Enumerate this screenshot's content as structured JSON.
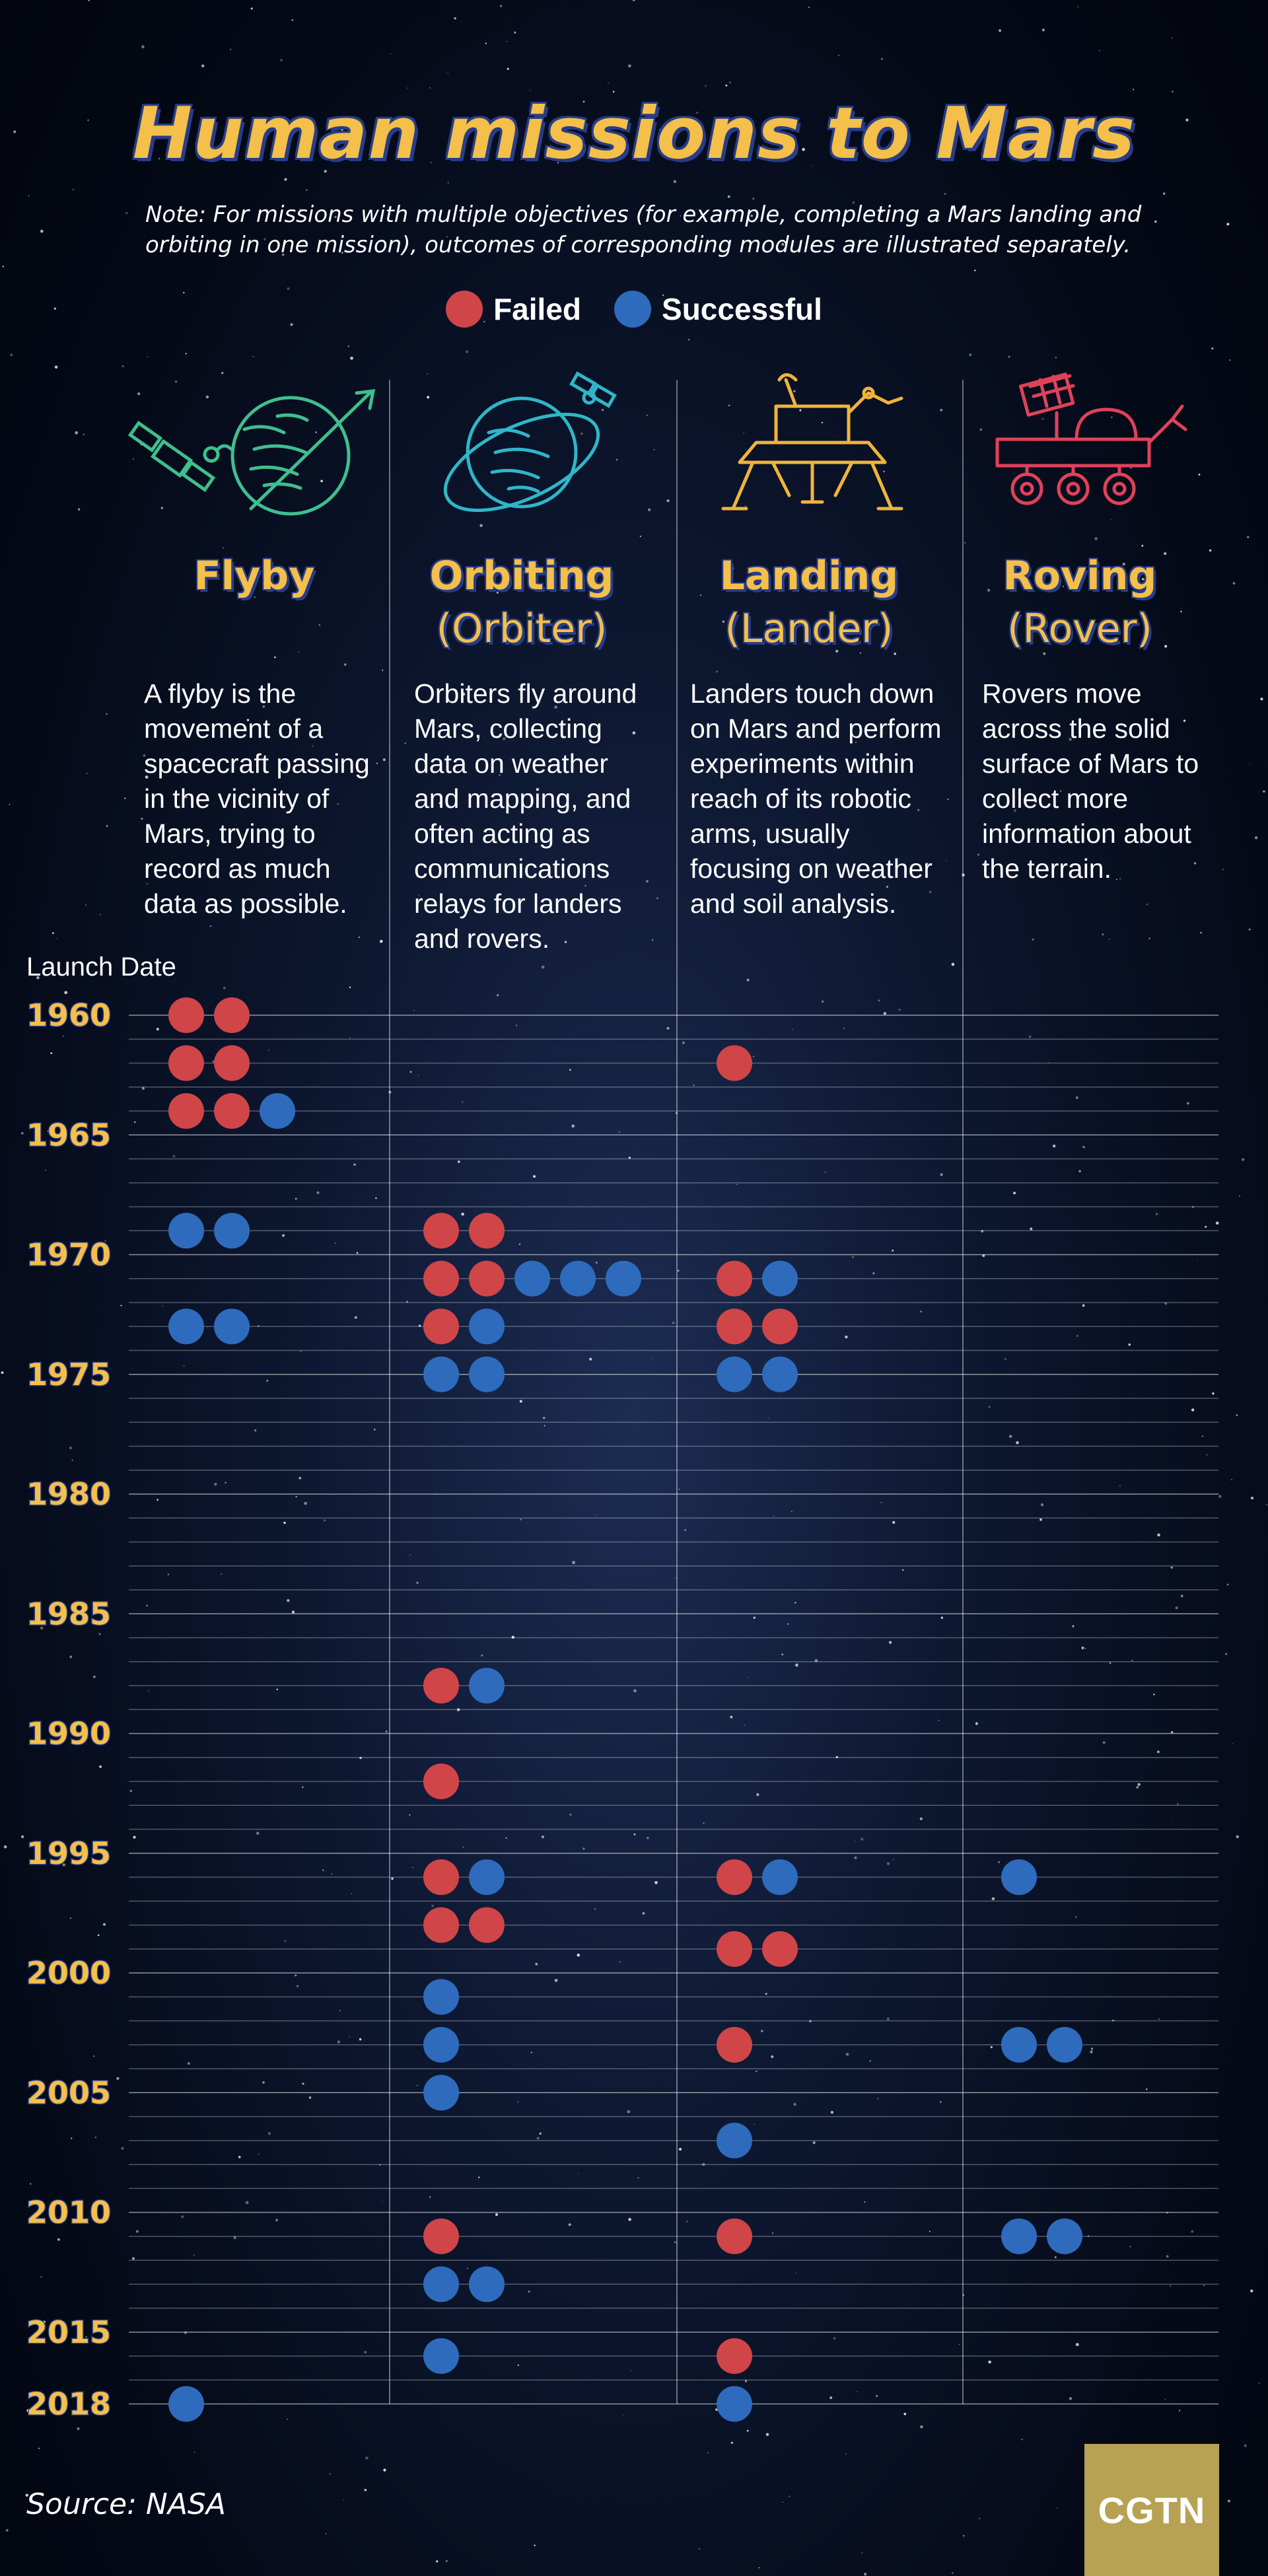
{
  "title": "Human missions to Mars",
  "note": "Note: For missions with multiple objectives (for example, completing a Mars landing and orbiting in one mission), outcomes of corresponding modules are illustrated separately.",
  "legend": [
    {
      "label": "Failed",
      "color": "#cf4548"
    },
    {
      "label": "Successful",
      "color": "#2e6bbd"
    }
  ],
  "columns": [
    {
      "title": "Flyby",
      "subtitle": "",
      "icon": "flyby-planet-satellite-icon",
      "color": "#3fbf8f",
      "description": "A flyby is the movement of a spacecraft passing in the vicinity of Mars, trying to record as much data as possible."
    },
    {
      "title": "Orbiting",
      "subtitle": "(Orbiter)",
      "icon": "orbiter-planet-satellite-icon",
      "color": "#2fb6c9",
      "description": "Orbiters fly around Mars, collecting data on weather and mapping, and often acting as communications relays for landers and rovers."
    },
    {
      "title": "Landing",
      "subtitle": "(Lander)",
      "icon": "lander-icon",
      "color": "#f0b43c",
      "description": "Landers touch down on Mars and perform experiments within reach of its robotic arms, usually focusing on weather and soil analysis."
    },
    {
      "title": "Roving",
      "subtitle": "(Rover)",
      "icon": "rover-icon",
      "color": "#e0425a",
      "description": "Rovers move across the solid surface of Mars to collect more information about the terrain."
    }
  ],
  "axis_label": "Launch Date",
  "source": "Source: NASA",
  "logo": "CGTN",
  "chart_data": {
    "type": "scatter",
    "x_axis": "category",
    "categories": [
      "Flyby",
      "Orbiting",
      "Landing",
      "Roving"
    ],
    "ylabel": "Launch Date",
    "y_ticks": [
      1960,
      1965,
      1970,
      1975,
      1980,
      1985,
      1990,
      1995,
      2000,
      2005,
      2010,
      2015,
      2018
    ],
    "ylim": [
      1960,
      2018
    ],
    "gridlines": "yearly",
    "outcomes": {
      "failed": "#cf4548",
      "successful": "#2e6bbd"
    },
    "points": [
      {
        "category": "Flyby",
        "year": 1960,
        "failed": 2,
        "successful": 0
      },
      {
        "category": "Flyby",
        "year": 1962,
        "failed": 2,
        "successful": 0
      },
      {
        "category": "Flyby",
        "year": 1964,
        "failed": 2,
        "successful": 1
      },
      {
        "category": "Flyby",
        "year": 1969,
        "failed": 0,
        "successful": 2
      },
      {
        "category": "Flyby",
        "year": 1973,
        "failed": 0,
        "successful": 2
      },
      {
        "category": "Flyby",
        "year": 2018,
        "failed": 0,
        "successful": 1
      },
      {
        "category": "Orbiting",
        "year": 1969,
        "failed": 2,
        "successful": 0
      },
      {
        "category": "Orbiting",
        "year": 1971,
        "failed": 2,
        "successful": 3
      },
      {
        "category": "Orbiting",
        "year": 1973,
        "failed": 1,
        "successful": 1
      },
      {
        "category": "Orbiting",
        "year": 1975,
        "failed": 0,
        "successful": 2
      },
      {
        "category": "Orbiting",
        "year": 1988,
        "failed": 1,
        "successful": 1
      },
      {
        "category": "Orbiting",
        "year": 1992,
        "failed": 1,
        "successful": 0
      },
      {
        "category": "Orbiting",
        "year": 1996,
        "failed": 1,
        "successful": 1
      },
      {
        "category": "Orbiting",
        "year": 1998,
        "failed": 2,
        "successful": 0
      },
      {
        "category": "Orbiting",
        "year": 2001,
        "failed": 0,
        "successful": 1
      },
      {
        "category": "Orbiting",
        "year": 2003,
        "failed": 0,
        "successful": 1
      },
      {
        "category": "Orbiting",
        "year": 2005,
        "failed": 0,
        "successful": 1
      },
      {
        "category": "Orbiting",
        "year": 2011,
        "failed": 1,
        "successful": 0
      },
      {
        "category": "Orbiting",
        "year": 2013,
        "failed": 0,
        "successful": 2
      },
      {
        "category": "Orbiting",
        "year": 2016,
        "failed": 0,
        "successful": 1
      },
      {
        "category": "Landing",
        "year": 1962,
        "failed": 1,
        "successful": 0
      },
      {
        "category": "Landing",
        "year": 1971,
        "failed": 1,
        "successful": 1
      },
      {
        "category": "Landing",
        "year": 1973,
        "failed": 2,
        "successful": 0
      },
      {
        "category": "Landing",
        "year": 1975,
        "failed": 0,
        "successful": 2
      },
      {
        "category": "Landing",
        "year": 1996,
        "failed": 1,
        "successful": 1
      },
      {
        "category": "Landing",
        "year": 1999,
        "failed": 2,
        "successful": 0
      },
      {
        "category": "Landing",
        "year": 2003,
        "failed": 1,
        "successful": 0
      },
      {
        "category": "Landing",
        "year": 2007,
        "failed": 0,
        "successful": 1
      },
      {
        "category": "Landing",
        "year": 2011,
        "failed": 1,
        "successful": 0
      },
      {
        "category": "Landing",
        "year": 2016,
        "failed": 1,
        "successful": 0
      },
      {
        "category": "Landing",
        "year": 2018,
        "failed": 0,
        "successful": 1
      },
      {
        "category": "Roving",
        "year": 1996,
        "failed": 0,
        "successful": 1
      },
      {
        "category": "Roving",
        "year": 2003,
        "failed": 0,
        "successful": 2
      },
      {
        "category": "Roving",
        "year": 2011,
        "failed": 0,
        "successful": 2
      }
    ]
  }
}
